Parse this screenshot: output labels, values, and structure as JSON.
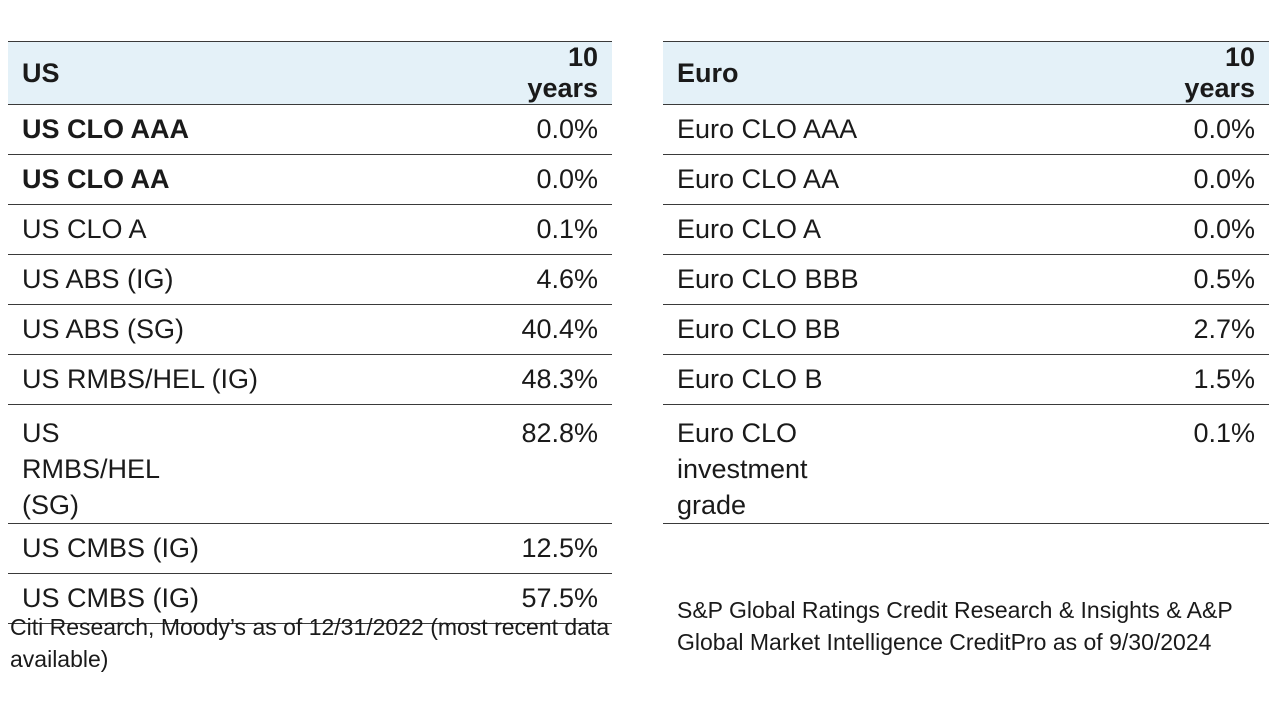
{
  "us_table": {
    "header": {
      "label": "US",
      "period": "10 years"
    },
    "rows": [
      {
        "label": "US CLO AAA",
        "value": "0.0%",
        "bold": true
      },
      {
        "label": "US CLO AA",
        "value": "0.0%",
        "bold": true
      },
      {
        "label": "US CLO A",
        "value": "0.1%"
      },
      {
        "label": "US ABS (IG)",
        "value": "4.6%"
      },
      {
        "label": "US ABS (SG)",
        "value": "40.4%"
      },
      {
        "label": "US RMBS/HEL (IG)",
        "value": "48.3%"
      },
      {
        "label": "US RMBS/HEL (SG)",
        "value": "82.8%",
        "tall": true
      },
      {
        "label": "US CMBS (IG)",
        "value": "12.5%"
      },
      {
        "label": "US CMBS (IG)",
        "value": "57.5%"
      }
    ],
    "source": "Citi Research, Moody’s as of 12/31/2022 (most recent data available)"
  },
  "euro_table": {
    "header": {
      "label": "Euro",
      "period": "10 years"
    },
    "rows": [
      {
        "label": "Euro CLO AAA",
        "value": "0.0%"
      },
      {
        "label": "Euro CLO AA",
        "value": "0.0%"
      },
      {
        "label": "Euro CLO A",
        "value": "0.0%"
      },
      {
        "label": "Euro CLO BBB",
        "value": "0.5%"
      },
      {
        "label": "Euro CLO BB",
        "value": "2.7%"
      },
      {
        "label": "Euro CLO B",
        "value": "1.5%"
      },
      {
        "label": "Euro CLO investment grade",
        "value": "0.1%",
        "tall": true
      }
    ],
    "source": "S&P Global Ratings Credit Research & Insights & A&P Global Market Intelligence CreditPro as of 9/30/2024"
  },
  "colors": {
    "header_bg": "#e4f1f8",
    "rule": "#3a3a3a",
    "text": "#1a1a1a"
  }
}
